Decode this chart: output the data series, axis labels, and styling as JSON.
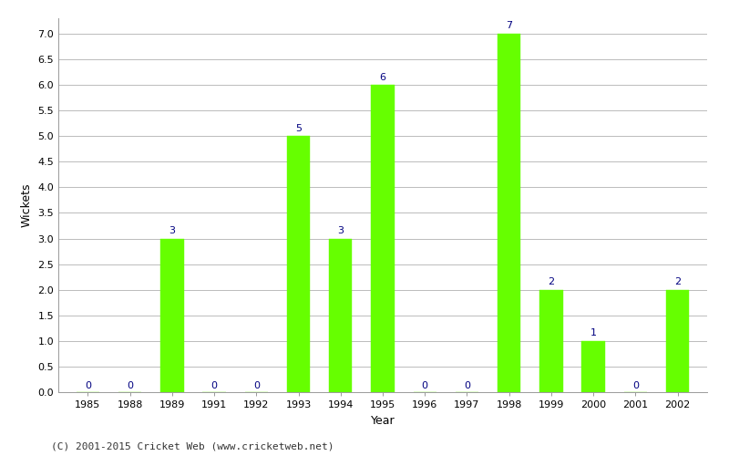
{
  "years": [
    1985,
    1988,
    1989,
    1991,
    1992,
    1993,
    1994,
    1995,
    1996,
    1997,
    1998,
    1999,
    2000,
    2001,
    2002
  ],
  "wickets": [
    0,
    0,
    3,
    0,
    0,
    5,
    3,
    6,
    0,
    0,
    7,
    2,
    1,
    0,
    2
  ],
  "bar_color": "#66ff00",
  "bar_edge_color": "#66ff00",
  "xlabel": "Year",
  "ylabel": "Wickets",
  "ylim": [
    0,
    7.3
  ],
  "yticks": [
    0.0,
    0.5,
    1.0,
    1.5,
    2.0,
    2.5,
    3.0,
    3.5,
    4.0,
    4.5,
    5.0,
    5.5,
    6.0,
    6.5,
    7.0
  ],
  "annotation_color": "#000080",
  "annotation_fontsize": 8,
  "label_fontsize": 9,
  "tick_fontsize": 8,
  "footer_text": "(C) 2001-2015 Cricket Web (www.cricketweb.net)",
  "footer_fontsize": 8,
  "background_color": "#ffffff",
  "grid_color": "#bbbbbb",
  "bar_width": 0.55
}
